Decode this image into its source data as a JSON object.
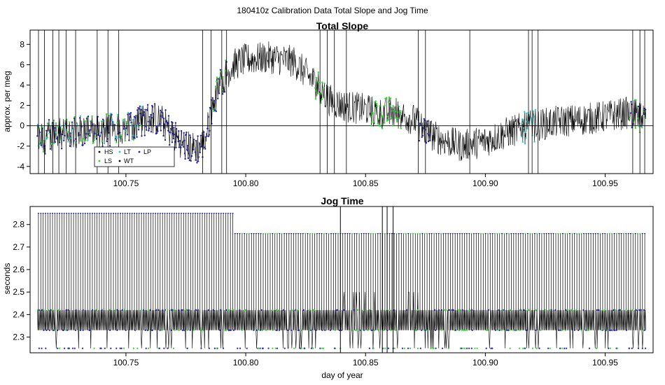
{
  "figure_title": "180410z   Calibration Data Total Slope and Jog Time",
  "colors": {
    "HS": "#000000",
    "LS": "#22dd22",
    "LT": "#22cccc",
    "WT": "#000000",
    "LP": "#2222aa",
    "trace": "#000000"
  },
  "chart_data": [
    {
      "type": "line",
      "title": "Total Slope",
      "xlabel": "",
      "ylabel": "approx. per meg",
      "xlim": [
        100.71,
        100.97
      ],
      "ylim": [
        -4.7,
        9.4
      ],
      "xticks": [
        100.75,
        100.8,
        100.85,
        100.9,
        100.95
      ],
      "xtick_labels": [
        "100.75",
        "100.80",
        "100.85",
        "100.90",
        "100.95"
      ],
      "yticks": [
        -4,
        -2,
        0,
        2,
        4,
        6,
        8
      ],
      "ytick_labels": [
        "-4",
        "-2",
        "0",
        "2",
        "4",
        "6",
        "8"
      ],
      "hline": 0,
      "legend": {
        "placement": "bottom-left",
        "entries": [
          {
            "key": "HS",
            "label": "HS"
          },
          {
            "key": "LT",
            "label": "LT"
          },
          {
            "key": "LP",
            "label": "LP"
          },
          {
            "key": "LS",
            "label": "LS"
          },
          {
            "key": "WT",
            "label": "WT"
          }
        ]
      },
      "trend": {
        "x": [
          100.713,
          100.72,
          100.73,
          100.74,
          100.75,
          100.755,
          100.76,
          100.765,
          100.77,
          100.775,
          100.78,
          100.783,
          100.786,
          100.79,
          100.795,
          100.8,
          100.81,
          100.82,
          100.83,
          100.835,
          100.84,
          100.85,
          100.855,
          100.86,
          100.865,
          100.87,
          100.875,
          100.88,
          100.89,
          100.9,
          100.91,
          100.92,
          100.93,
          100.94,
          100.95,
          100.96,
          100.967
        ],
        "y": [
          -1.5,
          -0.8,
          -0.6,
          -0.5,
          -0.2,
          0.3,
          0.8,
          0.5,
          -1.0,
          -2.0,
          -2.2,
          -1.5,
          2.0,
          4.5,
          6.0,
          6.5,
          6.7,
          6.3,
          4.0,
          2.5,
          2.0,
          1.6,
          1.2,
          1.3,
          1.1,
          0.6,
          -0.5,
          -1.2,
          -2.0,
          -1.5,
          -0.6,
          0.0,
          0.4,
          0.6,
          0.9,
          1.3,
          0.4
        ]
      },
      "noise_amplitude": 1.6,
      "spikes_x": [
        100.7135,
        100.716,
        100.7195,
        100.722,
        100.725,
        100.729,
        100.738,
        100.7425,
        100.747,
        100.782,
        100.7855,
        100.79,
        100.792,
        100.831,
        100.834,
        100.837,
        100.842,
        100.872,
        100.875,
        100.8935,
        100.918,
        100.9195,
        100.922,
        100.9615,
        100.9645,
        100.9665
      ]
    },
    {
      "type": "line",
      "title": "Jog Time",
      "xlabel": "day of year",
      "ylabel": "seconds",
      "xlim": [
        100.71,
        100.97
      ],
      "ylim": [
        2.23,
        2.88
      ],
      "xticks": [
        100.75,
        100.8,
        100.85,
        100.9,
        100.95
      ],
      "xtick_labels": [
        "100.75",
        "100.80",
        "100.85",
        "100.90",
        "100.95"
      ],
      "yticks": [
        2.3,
        2.4,
        2.5,
        2.6,
        2.7,
        2.8
      ],
      "ytick_labels": [
        "2.3",
        "2.4",
        "2.5",
        "2.6",
        "2.7",
        "2.8"
      ],
      "levels": [
        2.25,
        2.33,
        2.42,
        2.76,
        2.85
      ],
      "baseline": {
        "x": [
          100.713,
          100.967
        ],
        "y": [
          2.33,
          2.42
        ]
      },
      "peak_levels": [
        {
          "x_start": 100.713,
          "x_end": 100.795,
          "y": 2.85
        },
        {
          "x_start": 100.795,
          "x_end": 100.967,
          "y": 2.76
        }
      ],
      "low_levels": [
        {
          "x_start": 100.713,
          "x_end": 100.795,
          "y": 2.25
        },
        {
          "x_start": 100.795,
          "x_end": 100.967,
          "y": 2.25
        }
      ]
    }
  ]
}
